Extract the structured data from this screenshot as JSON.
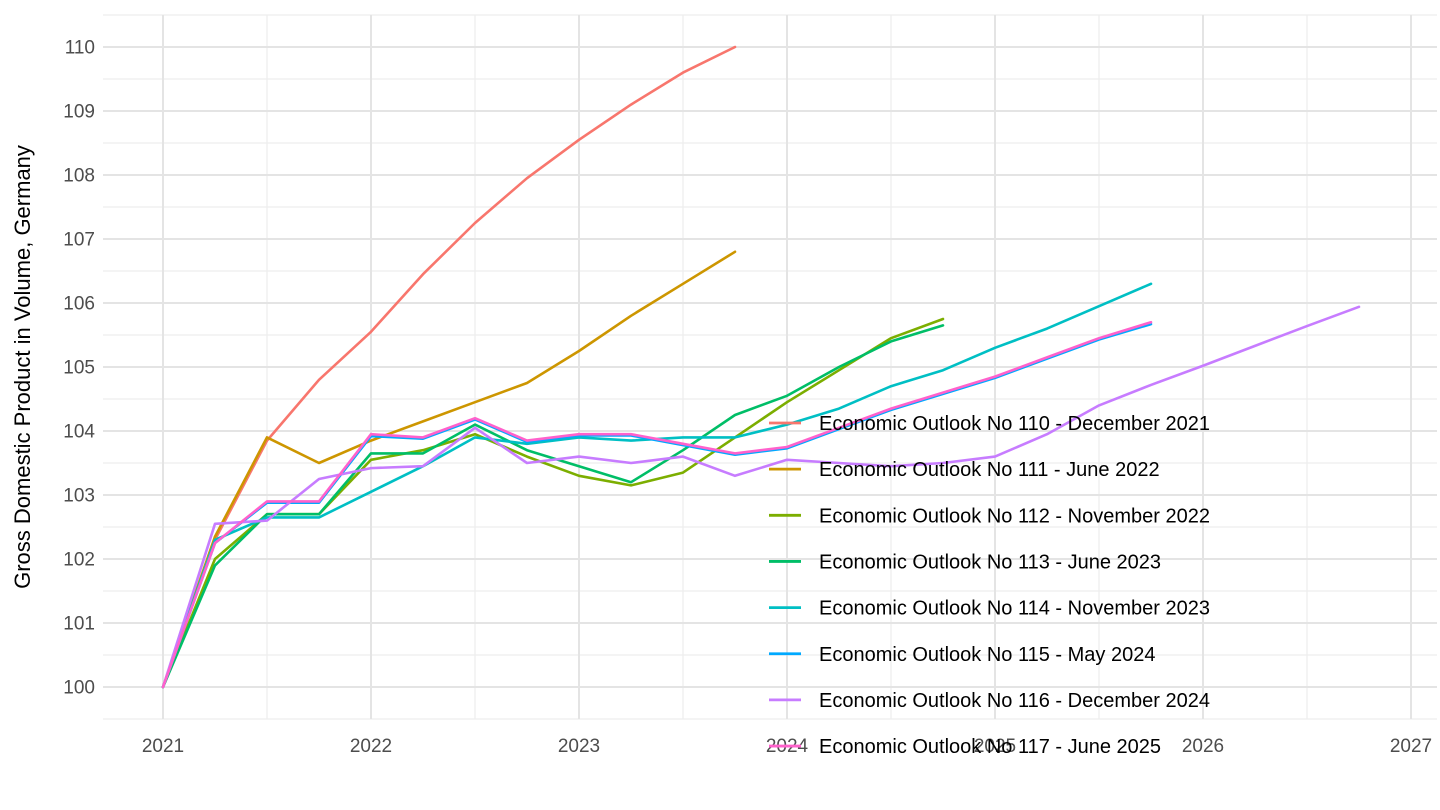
{
  "chart_data": {
    "type": "line",
    "title": "",
    "xlabel": "",
    "ylabel": "Gross Domestic Product in Volume, Germany",
    "x_ticks": [
      2021,
      2022,
      2023,
      2024,
      2025,
      2026,
      2027
    ],
    "y_ticks": [
      100,
      101,
      102,
      103,
      104,
      105,
      106,
      107,
      108,
      109,
      110
    ],
    "xlim": [
      2020.71,
      2027.13
    ],
    "ylim": [
      99.5,
      110.5
    ],
    "grid": "major-and-minor",
    "legend_position": "inside-right-bottom",
    "background_color": "#ffffff",
    "gridline_color": "#e5e5e5",
    "tick_label_color": "#4d4d4d",
    "axis_title_color": "#000000",
    "x_step": 0.25,
    "series": [
      {
        "name": "Economic Outlook No 110 - December 2021",
        "color": "#F8766D",
        "x_start": 2021,
        "values": [
          100,
          102.3,
          103.85,
          104.8,
          105.55,
          106.45,
          107.25,
          107.95,
          108.55,
          109.1,
          109.6,
          110
        ]
      },
      {
        "name": "Economic Outlook No 111 - June 2022",
        "color": "#CD9600",
        "x_start": 2021,
        "values": [
          100,
          102.35,
          103.9,
          103.5,
          103.85,
          104.15,
          104.45,
          104.75,
          105.25,
          105.8,
          106.3,
          106.8
        ]
      },
      {
        "name": "Economic Outlook No 112 - November 2022",
        "color": "#7CAE00",
        "x_start": 2021,
        "values": [
          100,
          102.0,
          102.7,
          102.7,
          103.55,
          103.7,
          103.95,
          103.6,
          103.3,
          103.15,
          103.35,
          103.9,
          104.45,
          104.95,
          105.45,
          105.75
        ]
      },
      {
        "name": "Economic Outlook No 113 - June 2023",
        "color": "#00BE67",
        "x_start": 2021,
        "values": [
          100,
          101.9,
          102.7,
          102.7,
          103.65,
          103.65,
          104.1,
          103.7,
          103.45,
          103.2,
          103.7,
          104.25,
          104.55,
          105.0,
          105.4,
          105.65
        ]
      },
      {
        "name": "Economic Outlook No 114 - November 2023",
        "color": "#00BFC4",
        "x_start": 2021,
        "values": [
          100,
          102.3,
          102.65,
          102.65,
          103.05,
          103.45,
          103.9,
          103.8,
          103.9,
          103.85,
          103.9,
          103.9,
          104.1,
          104.35,
          104.7,
          104.95,
          105.3,
          105.6,
          105.95,
          106.3
        ]
      },
      {
        "name": "Economic Outlook No 115 - May 2024",
        "color": "#00A9FF",
        "x_start": 2021,
        "values": [
          100,
          102.25,
          102.88,
          102.88,
          103.92,
          103.88,
          104.18,
          103.83,
          103.93,
          103.93,
          103.78,
          103.63,
          103.73,
          104.03,
          104.33,
          104.58,
          104.83,
          105.13,
          105.43,
          105.67
        ]
      },
      {
        "name": "Economic Outlook No 116 - December 2024",
        "color": "#C77CFF",
        "x_start": 2021,
        "values": [
          100,
          102.55,
          102.6,
          103.25,
          103.42,
          103.45,
          104.05,
          103.5,
          103.6,
          103.5,
          103.6,
          103.3,
          103.55,
          103.5,
          103.45,
          103.5,
          103.6,
          103.95,
          104.4,
          104.72,
          105.02,
          105.33,
          105.64,
          105.94
        ]
      },
      {
        "name": "Economic Outlook No 117 - June 2025",
        "color": "#FF61CC",
        "x_start": 2021,
        "values": [
          100,
          102.25,
          102.9,
          102.9,
          103.95,
          103.9,
          104.2,
          103.85,
          103.95,
          103.95,
          103.8,
          103.65,
          103.75,
          104.05,
          104.35,
          104.6,
          104.85,
          105.15,
          105.45,
          105.7
        ]
      }
    ]
  }
}
